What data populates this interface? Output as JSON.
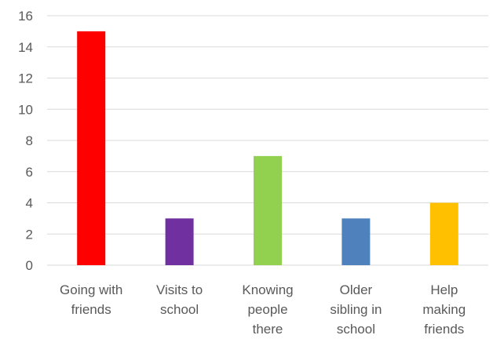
{
  "chart_data": {
    "type": "bar",
    "categories": [
      [
        "Going with",
        "friends"
      ],
      [
        "Visits to",
        "school"
      ],
      [
        "Knowing",
        "people",
        "there"
      ],
      [
        "Older",
        "sibling in",
        "school"
      ],
      [
        "Help",
        "making",
        "friends"
      ]
    ],
    "values": [
      15,
      3,
      7,
      3,
      4
    ],
    "colors": [
      "#ff0000",
      "#7030a0",
      "#92d050",
      "#4f81bd",
      "#ffc000"
    ],
    "ylim": [
      0,
      16
    ],
    "yticks": [
      0,
      2,
      4,
      6,
      8,
      10,
      12,
      14,
      16
    ],
    "grid": true,
    "title": "",
    "xlabel": "",
    "ylabel": ""
  },
  "style": {
    "grid_color": "#d9d9d9",
    "axis_text_color": "#595959"
  }
}
